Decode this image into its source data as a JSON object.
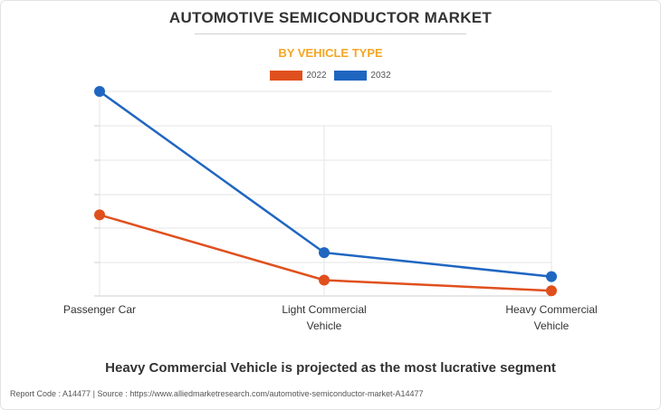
{
  "header": {
    "title": "AUTOMOTIVE SEMICONDUCTOR MARKET",
    "subtitle": "BY VEHICLE TYPE",
    "subtitle_color": "#f5a623"
  },
  "chart_data": {
    "type": "line",
    "title": "AUTOMOTIVE SEMICONDUCTOR MARKET",
    "subtitle": "BY VEHICLE TYPE",
    "categories": [
      "Passenger Car",
      "Light Commercial Vehicle",
      "Heavy Commercial Vehicle"
    ],
    "category_lines": [
      [
        "Passenger Car"
      ],
      [
        "Light Commercial",
        "Vehicle"
      ],
      [
        "Heavy Commercial",
        "Vehicle"
      ]
    ],
    "series": [
      {
        "name": "2022",
        "color": "#e0501e",
        "values": [
          23,
          4.5,
          1.5
        ]
      },
      {
        "name": "2032",
        "color": "#1f66c1",
        "values": [
          58,
          12.3,
          5.5
        ]
      }
    ],
    "ylim": [
      0,
      58
    ],
    "y_axis_labels_visible": false,
    "grid": "horizontal",
    "legend": "top-center"
  },
  "headline": "Heavy Commercial Vehicle is projected as the most lucrative segment",
  "footer": "Report Code : A14477  |  Source : https://www.alliedmarketresearch.com/automotive-semiconductor-market-A14477"
}
